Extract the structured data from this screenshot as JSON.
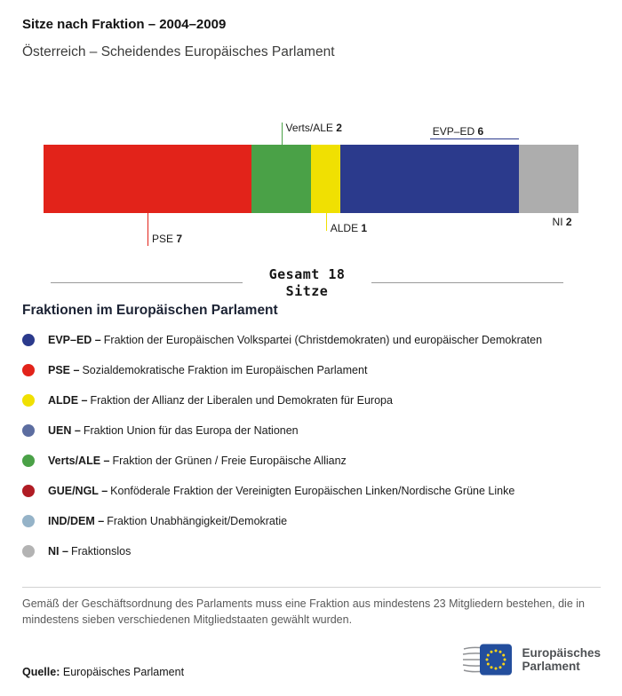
{
  "header": {
    "title": "Sitze nach Fraktion – 2004–2009",
    "subtitle": "Österreich – Scheidendes Europäisches Parlament"
  },
  "chart_data": {
    "type": "bar",
    "subtype": "horizontal-stacked",
    "title": "Sitze nach Fraktion – 2004–2009",
    "subtitle": "Österreich – Scheidendes Europäisches Parlament",
    "total_seats": 18,
    "total_label": "Gesamt 18",
    "total_sublabel": "Sitze",
    "segments": [
      {
        "name": "PSE",
        "seats": 7,
        "color": "#e2231a",
        "label_side": "below"
      },
      {
        "name": "Verts/ALE",
        "seats": 2,
        "color": "#4aa147",
        "label_side": "above"
      },
      {
        "name": "ALDE",
        "seats": 1,
        "color": "#f0e002",
        "label_side": "below"
      },
      {
        "name": "EVP–ED",
        "seats": 6,
        "color": "#2b3a8c",
        "label_side": "above"
      },
      {
        "name": "NI",
        "seats": 2,
        "color": "#adadad",
        "label_side": "below"
      }
    ]
  },
  "legend": {
    "heading": "Fraktionen im Europäischen Parlament",
    "items": [
      {
        "abbr": "EVP–ED –",
        "text": "Fraktion der Europäischen Volkspartei (Christdemokraten) und europäischer Demokraten",
        "color": "#2b3a8c"
      },
      {
        "abbr": "PSE –",
        "text": "Sozialdemokratische Fraktion im Europäischen Parlament",
        "color": "#e2231a"
      },
      {
        "abbr": "ALDE –",
        "text": "Fraktion der Allianz der Liberalen und Demokraten für Europa",
        "color": "#f0e002"
      },
      {
        "abbr": "UEN –",
        "text": "Fraktion Union für das Europa der Nationen",
        "color": "#5c6da0"
      },
      {
        "abbr": "Verts/ALE –",
        "text": "Fraktion der Grünen / Freie Europäische Allianz",
        "color": "#4aa147"
      },
      {
        "abbr": "GUE/NGL –",
        "text": "Konföderale Fraktion der Vereinigten Europäischen Linken/Nordische Grüne Linke",
        "color": "#b01c24"
      },
      {
        "abbr": "IND/DEM –",
        "text": "Fraktion Unabhängigkeit/Demokratie",
        "color": "#95b3c8"
      },
      {
        "abbr": "NI –",
        "text": "Fraktionslos",
        "color": "#b3b3b3"
      }
    ]
  },
  "footnote": "Gemäß der Geschäftsordnung des Parlaments muss eine Fraktion aus mindestens 23 Mitgliedern bestehen, die in mindestens sieben verschiedenen Mitgliedstaaten gewählt wurden.",
  "source": {
    "label": "Quelle:",
    "text": "Europäisches Parlament"
  },
  "logo": {
    "icon": "eu-flag-stars-icon",
    "line1": "Europäisches",
    "line2": "Parlament"
  }
}
